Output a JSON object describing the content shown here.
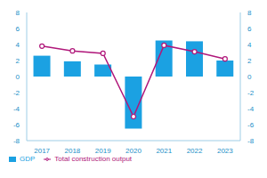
{
  "chart_data": {
    "type": "bar",
    "categories": [
      "2017",
      "2018",
      "2019",
      "2020",
      "2021",
      "2022",
      "2023"
    ],
    "series": [
      {
        "name": "GDP",
        "type": "bar",
        "color": "#1ba1e2",
        "values": [
          2.6,
          1.9,
          1.5,
          -6.5,
          4.5,
          4.4,
          2.0
        ]
      },
      {
        "name": "Total construction output",
        "type": "line",
        "color": "#b0177a",
        "marker": "circle",
        "axis": "y2",
        "values": [
          3.8,
          3.2,
          2.9,
          -5.0,
          3.9,
          3.1,
          2.2
        ]
      }
    ],
    "ylim": [
      -8,
      8
    ],
    "yticks": [
      -8,
      -6,
      -4,
      -2,
      0,
      2,
      4,
      6,
      8
    ],
    "y2lim": [
      -8,
      8
    ],
    "y2ticks": [
      -8,
      -6,
      -4,
      -2,
      0,
      2,
      4,
      6,
      8
    ],
    "grid": false,
    "legend": "bottom"
  }
}
